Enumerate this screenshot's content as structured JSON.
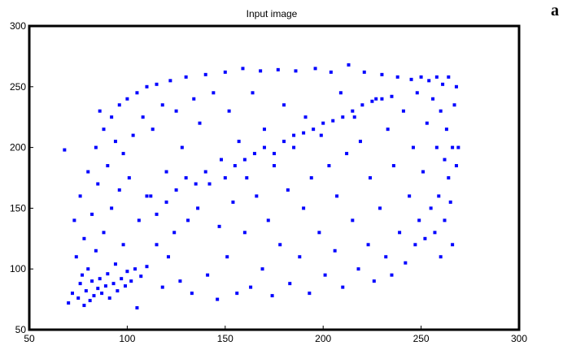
{
  "panel_label": "a",
  "chart_data": {
    "type": "scatter",
    "title": "Input image",
    "xlabel": "",
    "ylabel": "",
    "xlim": [
      50,
      300
    ],
    "ylim": [
      50,
      300
    ],
    "xticks": [
      50,
      100,
      150,
      200,
      250,
      300
    ],
    "yticks": [
      50,
      100,
      150,
      200,
      250,
      300
    ],
    "grid": false,
    "legend": "none",
    "marker_color": "#0000ff",
    "series": [
      {
        "values": [
          [
            68,
            198
          ],
          [
            70,
            72
          ],
          [
            72,
            80
          ],
          [
            73,
            140
          ],
          [
            74,
            110
          ],
          [
            75,
            76
          ],
          [
            76,
            88
          ],
          [
            76,
            160
          ],
          [
            77,
            95
          ],
          [
            78,
            70
          ],
          [
            78,
            125
          ],
          [
            79,
            82
          ],
          [
            80,
            100
          ],
          [
            80,
            180
          ],
          [
            81,
            74
          ],
          [
            82,
            90
          ],
          [
            82,
            145
          ],
          [
            83,
            78
          ],
          [
            84,
            115
          ],
          [
            84,
            200
          ],
          [
            85,
            84
          ],
          [
            85,
            170
          ],
          [
            86,
            92
          ],
          [
            86,
            230
          ],
          [
            87,
            80
          ],
          [
            88,
            130
          ],
          [
            88,
            215
          ],
          [
            89,
            86
          ],
          [
            90,
            96
          ],
          [
            90,
            185
          ],
          [
            91,
            76
          ],
          [
            92,
            150
          ],
          [
            92,
            225
          ],
          [
            93,
            88
          ],
          [
            94,
            104
          ],
          [
            94,
            205
          ],
          [
            95,
            82
          ],
          [
            96,
            165
          ],
          [
            96,
            235
          ],
          [
            97,
            92
          ],
          [
            98,
            120
          ],
          [
            98,
            195
          ],
          [
            99,
            86
          ],
          [
            100,
            98
          ],
          [
            100,
            240
          ],
          [
            101,
            175
          ],
          [
            102,
            90
          ],
          [
            103,
            210
          ],
          [
            104,
            100
          ],
          [
            105,
            68
          ],
          [
            105,
            245
          ],
          [
            106,
            140
          ],
          [
            107,
            94
          ],
          [
            108,
            225
          ],
          [
            110,
            102
          ],
          [
            110,
            250
          ],
          [
            112,
            160
          ],
          [
            113,
            215
          ],
          [
            115,
            120
          ],
          [
            115,
            252
          ],
          [
            118,
            85
          ],
          [
            118,
            235
          ],
          [
            120,
            180
          ],
          [
            121,
            110
          ],
          [
            122,
            255
          ],
          [
            124,
            130
          ],
          [
            125,
            230
          ],
          [
            127,
            90
          ],
          [
            128,
            200
          ],
          [
            130,
            258
          ],
          [
            131,
            140
          ],
          [
            133,
            80
          ],
          [
            134,
            240
          ],
          [
            136,
            150
          ],
          [
            137,
            220
          ],
          [
            140,
            260
          ],
          [
            141,
            95
          ],
          [
            142,
            170
          ],
          [
            144,
            245
          ],
          [
            146,
            75
          ],
          [
            147,
            135
          ],
          [
            148,
            190
          ],
          [
            150,
            262
          ],
          [
            151,
            110
          ],
          [
            152,
            230
          ],
          [
            154,
            155
          ],
          [
            156,
            80
          ],
          [
            157,
            205
          ],
          [
            159,
            265
          ],
          [
            160,
            130
          ],
          [
            161,
            175
          ],
          [
            163,
            85
          ],
          [
            164,
            245
          ],
          [
            166,
            160
          ],
          [
            168,
            263
          ],
          [
            169,
            100
          ],
          [
            170,
            215
          ],
          [
            172,
            140
          ],
          [
            174,
            78
          ],
          [
            175,
            185
          ],
          [
            177,
            264
          ],
          [
            178,
            120
          ],
          [
            180,
            235
          ],
          [
            182,
            165
          ],
          [
            183,
            88
          ],
          [
            185,
            200
          ],
          [
            186,
            263
          ],
          [
            188,
            110
          ],
          [
            190,
            150
          ],
          [
            191,
            225
          ],
          [
            193,
            80
          ],
          [
            194,
            175
          ],
          [
            196,
            265
          ],
          [
            198,
            130
          ],
          [
            199,
            210
          ],
          [
            201,
            95
          ],
          [
            203,
            185
          ],
          [
            204,
            262
          ],
          [
            206,
            115
          ],
          [
            207,
            160
          ],
          [
            209,
            245
          ],
          [
            210,
            85
          ],
          [
            212,
            195
          ],
          [
            213,
            268
          ],
          [
            215,
            140
          ],
          [
            216,
            225
          ],
          [
            218,
            100
          ],
          [
            219,
            205
          ],
          [
            221,
            262
          ],
          [
            223,
            120
          ],
          [
            224,
            175
          ],
          [
            226,
            90
          ],
          [
            227,
            240
          ],
          [
            229,
            150
          ],
          [
            230,
            260
          ],
          [
            232,
            110
          ],
          [
            233,
            215
          ],
          [
            235,
            95
          ],
          [
            236,
            185
          ],
          [
            238,
            258
          ],
          [
            239,
            130
          ],
          [
            241,
            230
          ],
          [
            242,
            105
          ],
          [
            244,
            160
          ],
          [
            245,
            256
          ],
          [
            246,
            200
          ],
          [
            247,
            120
          ],
          [
            248,
            245
          ],
          [
            249,
            140
          ],
          [
            250,
            258
          ],
          [
            251,
            180
          ],
          [
            252,
            125
          ],
          [
            253,
            220
          ],
          [
            254,
            255
          ],
          [
            255,
            150
          ],
          [
            256,
            240
          ],
          [
            257,
            130
          ],
          [
            258,
            200
          ],
          [
            258,
            258
          ],
          [
            259,
            160
          ],
          [
            260,
            230
          ],
          [
            260,
            110
          ],
          [
            261,
            252
          ],
          [
            262,
            190
          ],
          [
            262,
            140
          ],
          [
            263,
            215
          ],
          [
            264,
            175
          ],
          [
            264,
            258
          ],
          [
            265,
            155
          ],
          [
            266,
            200
          ],
          [
            266,
            120
          ],
          [
            267,
            235
          ],
          [
            268,
            250
          ],
          [
            268,
            185
          ],
          [
            269,
            200
          ],
          [
            110,
            160
          ],
          [
            115,
            145
          ],
          [
            120,
            155
          ],
          [
            125,
            165
          ],
          [
            130,
            175
          ],
          [
            135,
            170
          ],
          [
            140,
            180
          ],
          [
            150,
            175
          ],
          [
            155,
            185
          ],
          [
            160,
            190
          ],
          [
            165,
            195
          ],
          [
            170,
            200
          ],
          [
            175,
            195
          ],
          [
            180,
            205
          ],
          [
            185,
            210
          ],
          [
            190,
            212
          ],
          [
            195,
            215
          ],
          [
            200,
            220
          ],
          [
            205,
            222
          ],
          [
            210,
            225
          ],
          [
            215,
            230
          ],
          [
            220,
            235
          ],
          [
            225,
            238
          ],
          [
            230,
            240
          ],
          [
            235,
            242
          ]
        ]
      }
    ]
  }
}
